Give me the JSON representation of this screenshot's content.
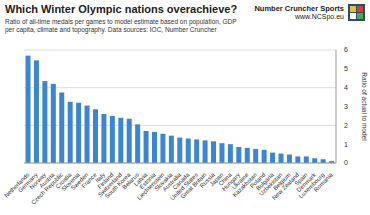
{
  "chart_data": {
    "type": "bar",
    "title": "Which Winter Olympic nations overachieve?",
    "subtitle": "Ratio of all-time medals per games to model estimate based on population, GDP per capita, climate and topography. Data sources: IOC, Number Cruncher",
    "annotations": [
      "Number Cruncher Sports",
      "www.NCSpo.eu"
    ],
    "y_label": "Ratio of actual to model",
    "categories": [
      "Netherlands",
      "Germany",
      "Norway",
      "Austria",
      "Czech Republic",
      "Croatia",
      "Slovenia",
      "Sweden",
      "France",
      "Italy",
      "Finland",
      "Switzerland",
      "South Korea",
      "Belarus",
      "Latvia",
      "Estonia",
      "Liechtenstein",
      "Slovakia",
      "Australia",
      "Canada",
      "United States",
      "Great Britain",
      "Russia",
      "Japan",
      "China",
      "Hungary",
      "Ukraine",
      "Kazakhstan",
      "Poland",
      "Bulgaria",
      "Uzbekistan",
      "Belgium",
      "New Zealand",
      "Spain",
      "Denmark",
      "Luxembourg",
      "Romania"
    ],
    "values": [
      5.7,
      5.45,
      4.35,
      4.2,
      3.75,
      3.25,
      3.2,
      3.05,
      2.85,
      2.6,
      2.5,
      2.4,
      2.35,
      2.05,
      1.7,
      1.65,
      1.55,
      1.45,
      1.35,
      1.3,
      1.25,
      1.2,
      1.15,
      1.05,
      1.0,
      0.85,
      0.8,
      0.75,
      0.7,
      0.55,
      0.5,
      0.45,
      0.35,
      0.35,
      0.25,
      0.2,
      0.1
    ],
    "color": "#3a86d4",
    "ylim": [
      0,
      6
    ],
    "yticks": [
      0,
      1,
      2,
      3,
      4,
      5,
      6
    ],
    "grid": true
  }
}
